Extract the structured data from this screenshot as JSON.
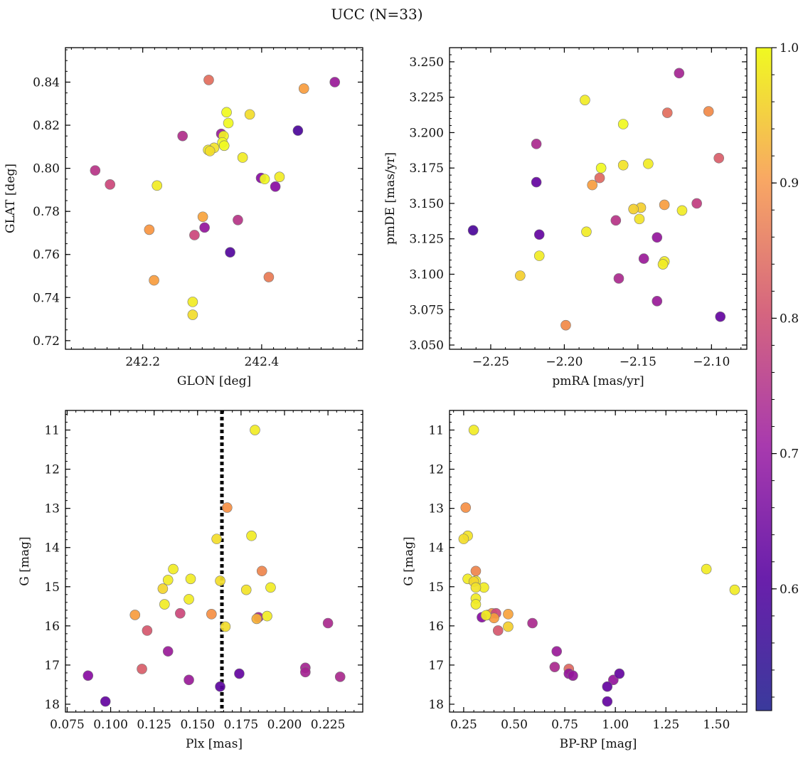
{
  "figure": {
    "title": "UCC (N=33)",
    "colorbar": {
      "range": [
        0.51,
        1.0
      ],
      "ticks": [
        0.6,
        0.7,
        0.8,
        0.9,
        1.0
      ],
      "tick_labels": [
        "0.6",
        "0.7",
        "0.8",
        "0.9",
        "1.0"
      ],
      "colormap": "plasma"
    }
  },
  "chart_data": [
    {
      "type": "scatter",
      "xlabel": "GLON [deg]",
      "ylabel": "GLAT [deg]",
      "xlim": [
        242.07,
        242.57
      ],
      "ylim": [
        0.716,
        0.856
      ],
      "xticks": [
        242.2,
        242.4
      ],
      "xtick_labels": [
        "242.2",
        "242.4"
      ],
      "yticks": [
        0.72,
        0.74,
        0.76,
        0.78,
        0.8,
        0.82,
        0.84
      ],
      "ytick_labels": [
        "0.72",
        "0.74",
        "0.76",
        "0.78",
        "0.80",
        "0.82",
        "0.84"
      ],
      "x": [
        242.311,
        242.471,
        242.523,
        242.341,
        242.38,
        242.344,
        242.332,
        242.461,
        242.267,
        242.336,
        242.334,
        242.337,
        242.32,
        242.31,
        242.313,
        242.12,
        242.368,
        242.399,
        242.405,
        242.43,
        242.145,
        242.224,
        242.423,
        242.301,
        242.211,
        242.304,
        242.287,
        242.36,
        242.347,
        242.412,
        242.219,
        242.284,
        242.284
      ],
      "y": [
        0.841,
        0.837,
        0.84,
        0.826,
        0.825,
        0.821,
        0.816,
        0.8175,
        0.815,
        0.815,
        0.812,
        0.8105,
        0.8095,
        0.8085,
        0.808,
        0.799,
        0.805,
        0.7955,
        0.795,
        0.796,
        0.7925,
        0.792,
        0.7915,
        0.7775,
        0.7715,
        0.7725,
        0.769,
        0.776,
        0.761,
        0.7495,
        0.748,
        0.738,
        0.732
      ],
      "c": [
        0.79,
        0.87,
        0.63,
        1.0,
        0.96,
        1.0,
        0.63,
        0.52,
        0.67,
        0.99,
        1.0,
        1.0,
        0.97,
        0.98,
        0.96,
        0.68,
        0.98,
        0.6,
        1.0,
        0.98,
        0.72,
        0.98,
        0.6,
        0.88,
        0.86,
        0.62,
        0.72,
        0.68,
        0.53,
        0.81,
        0.87,
        0.98,
        0.96
      ]
    },
    {
      "type": "scatter",
      "xlabel": "pmRA [mas/yr]",
      "ylabel": "pmDE [mas/yr]",
      "xlim": [
        -2.278,
        -2.076
      ],
      "ylim": [
        3.047,
        3.26
      ],
      "xticks": [
        -2.25,
        -2.2,
        -2.15,
        -2.1
      ],
      "xtick_labels": [
        "−2.25",
        "−2.20",
        "−2.15",
        "−2.10"
      ],
      "yticks": [
        3.05,
        3.075,
        3.1,
        3.125,
        3.15,
        3.175,
        3.2,
        3.225,
        3.25
      ],
      "ytick_labels": [
        "3.050",
        "3.075",
        "3.100",
        "3.125",
        "3.150",
        "3.175",
        "3.200",
        "3.225",
        "3.250"
      ],
      "x": [
        -2.122,
        -2.186,
        -2.13,
        -2.102,
        -2.16,
        -2.219,
        -2.095,
        -2.143,
        -2.175,
        -2.16,
        -2.176,
        -2.181,
        -2.219,
        -2.11,
        -2.132,
        -2.148,
        -2.153,
        -2.12,
        -2.149,
        -2.262,
        -2.185,
        -2.165,
        -2.137,
        -2.217,
        -2.217,
        -2.132,
        -2.133,
        -2.146,
        -2.23,
        -2.163,
        -2.137,
        -2.094,
        -2.199
      ],
      "y": [
        3.242,
        3.223,
        3.214,
        3.215,
        3.206,
        3.192,
        3.182,
        3.178,
        3.175,
        3.177,
        3.168,
        3.163,
        3.165,
        3.15,
        3.149,
        3.147,
        3.146,
        3.145,
        3.139,
        3.131,
        3.13,
        3.138,
        3.126,
        3.128,
        3.113,
        3.109,
        3.107,
        3.111,
        3.099,
        3.097,
        3.081,
        3.07,
        3.064
      ],
      "c": [
        0.65,
        0.98,
        0.79,
        0.84,
        1.0,
        0.66,
        0.76,
        0.98,
        1.0,
        0.97,
        0.78,
        0.87,
        0.55,
        0.7,
        0.87,
        0.94,
        0.94,
        0.98,
        0.97,
        0.52,
        0.98,
        0.68,
        0.62,
        0.55,
        0.98,
        0.98,
        0.98,
        0.63,
        0.94,
        0.66,
        0.63,
        0.55,
        0.84
      ]
    },
    {
      "type": "scatter",
      "xlabel": "Plx [mas]",
      "ylabel": "G [mag]",
      "xlim": [
        0.074,
        0.245
      ],
      "ylim": [
        18.2,
        10.5
      ],
      "y_inverted": true,
      "vline": {
        "x": 0.164,
        "style": "dotted",
        "color": "#000000"
      },
      "xticks": [
        0.075,
        0.1,
        0.125,
        0.15,
        0.175,
        0.2,
        0.225
      ],
      "xtick_labels": [
        "0.075",
        "0.100",
        "0.125",
        "0.150",
        "0.175",
        "0.200",
        "0.225"
      ],
      "yticks": [
        11,
        12,
        13,
        14,
        15,
        16,
        17,
        18
      ],
      "ytick_labels": [
        "11",
        "12",
        "13",
        "14",
        "15",
        "16",
        "17",
        "18"
      ],
      "x": [
        0.183,
        0.167,
        0.181,
        0.161,
        0.136,
        0.187,
        0.146,
        0.133,
        0.163,
        0.178,
        0.192,
        0.13,
        0.145,
        0.131,
        0.114,
        0.14,
        0.158,
        0.185,
        0.19,
        0.184,
        0.166,
        0.225,
        0.121,
        0.133,
        0.118,
        0.212,
        0.212,
        0.174,
        0.087,
        0.232,
        0.145,
        0.163,
        0.097
      ],
      "y": [
        11.0,
        12.98,
        13.7,
        13.78,
        14.55,
        14.6,
        14.8,
        14.83,
        14.85,
        15.08,
        15.02,
        15.05,
        15.32,
        15.45,
        15.72,
        15.68,
        15.7,
        15.78,
        15.75,
        15.82,
        16.02,
        15.93,
        16.12,
        16.65,
        17.1,
        17.07,
        17.18,
        17.22,
        17.27,
        17.3,
        17.38,
        17.55,
        17.93
      ],
      "c": [
        0.98,
        0.85,
        0.98,
        0.96,
        0.98,
        0.83,
        0.98,
        0.98,
        0.96,
        0.97,
        0.98,
        0.95,
        0.98,
        0.98,
        0.87,
        0.72,
        0.85,
        0.65,
        0.98,
        0.9,
        0.96,
        0.66,
        0.75,
        0.63,
        0.76,
        0.65,
        0.65,
        0.55,
        0.6,
        0.66,
        0.63,
        0.54,
        0.55
      ]
    },
    {
      "type": "scatter",
      "xlabel": "BP-RP [mag]",
      "ylabel": "G [mag]",
      "xlim": [
        0.18,
        1.65
      ],
      "ylim": [
        18.2,
        10.5
      ],
      "y_inverted": true,
      "xticks": [
        0.25,
        0.5,
        0.75,
        1.0,
        1.25,
        1.5
      ],
      "xtick_labels": [
        "0.25",
        "0.50",
        "0.75",
        "1.00",
        "1.25",
        "1.50"
      ],
      "yticks": [
        11,
        12,
        13,
        14,
        15,
        16,
        17,
        18
      ],
      "ytick_labels": [
        "11",
        "12",
        "13",
        "14",
        "15",
        "16",
        "17",
        "18"
      ],
      "x": [
        0.3,
        0.26,
        0.27,
        0.25,
        1.45,
        1.59,
        0.31,
        0.27,
        0.31,
        0.35,
        0.3,
        0.31,
        0.31,
        0.31,
        0.37,
        0.39,
        0.41,
        0.47,
        0.4,
        0.34,
        0.47,
        0.59,
        0.42,
        0.71,
        0.7,
        0.77,
        0.77,
        0.79,
        0.99,
        1.02,
        0.96,
        0.96,
        0.36
      ],
      "y": [
        11.0,
        12.98,
        13.7,
        13.78,
        14.55,
        15.08,
        14.6,
        14.8,
        14.85,
        15.02,
        14.87,
        15.02,
        15.3,
        15.45,
        15.72,
        15.68,
        15.68,
        15.7,
        15.8,
        15.78,
        16.02,
        15.93,
        16.12,
        16.65,
        17.05,
        17.1,
        17.22,
        17.27,
        17.38,
        17.22,
        17.55,
        17.93,
        15.73
      ],
      "c": [
        0.98,
        0.85,
        0.97,
        0.96,
        0.98,
        0.98,
        0.83,
        0.98,
        0.98,
        0.98,
        0.95,
        0.97,
        0.98,
        0.98,
        0.96,
        0.85,
        0.72,
        0.88,
        0.87,
        0.6,
        0.94,
        0.66,
        0.75,
        0.63,
        0.66,
        0.78,
        0.62,
        0.62,
        0.62,
        0.55,
        0.55,
        0.55,
        0.98
      ]
    }
  ]
}
